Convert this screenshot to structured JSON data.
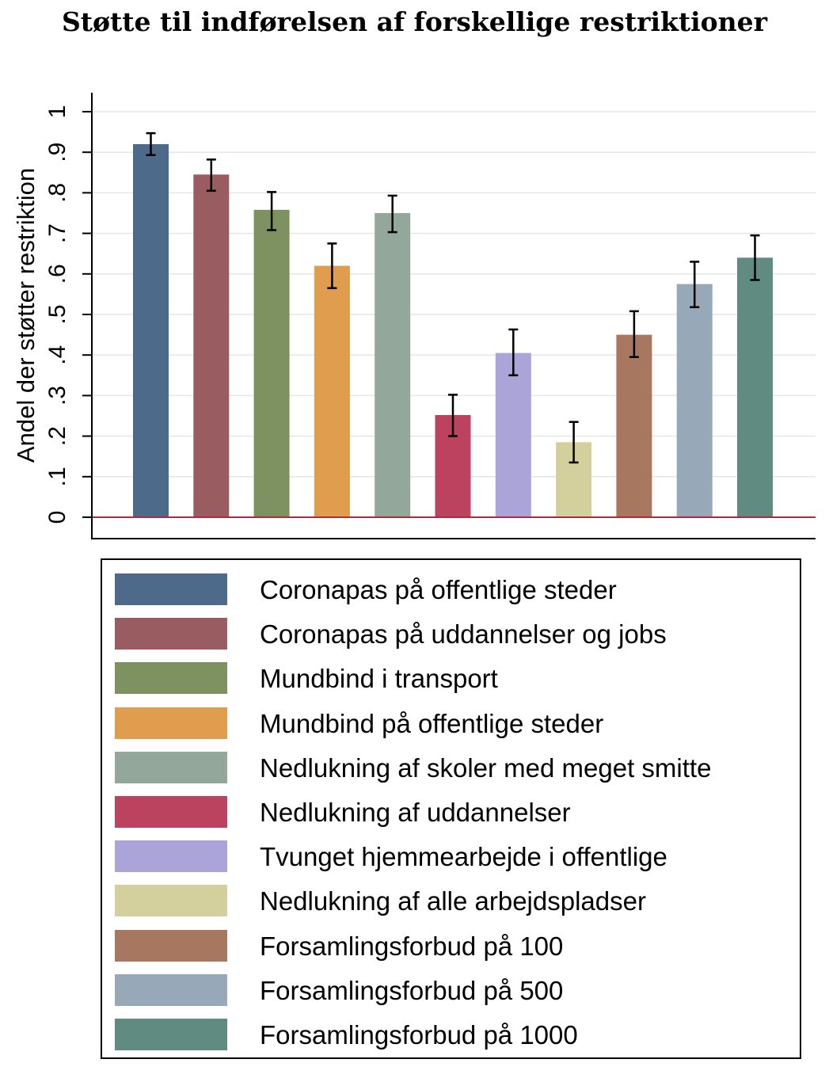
{
  "chart_data": {
    "type": "bar",
    "title": "Støtte til indførelsen af forskellige restriktioner",
    "xlabel": "",
    "ylabel": "Andel der støtter restriktion",
    "ylim": [
      0,
      1
    ],
    "yticks": [
      0,
      0.1,
      0.2,
      0.3,
      0.4,
      0.5,
      0.6,
      0.7,
      0.8,
      0.9,
      1
    ],
    "ytick_labels": [
      "0",
      ".1",
      ".2",
      ".3",
      ".4",
      ".5",
      ".6",
      ".7",
      ".8",
      ".9",
      "1"
    ],
    "grid": true,
    "reference_line": {
      "y": 0,
      "color": "#b5293e"
    },
    "legend_position": "bottom",
    "categories": [
      "Coronapas på offentlige steder",
      "Coronapas på uddannelser og jobs",
      "Mundbind i transport",
      "Mundbind på offentlige steder",
      "Nedlukning af skoler med meget smitte",
      "Nedlukning af uddannelser",
      "Tvunget hjemmearbejde i offentlige",
      "Nedlukning af alle arbejdspladser",
      "Forsamlingsforbud på 100",
      "Forsamlingsforbud på 500",
      "Forsamlingsforbud på 1000"
    ],
    "values": [
      0.92,
      0.845,
      0.758,
      0.62,
      0.75,
      0.252,
      0.405,
      0.185,
      0.45,
      0.575,
      0.64
    ],
    "ci_low": [
      0.893,
      0.805,
      0.708,
      0.565,
      0.703,
      0.2,
      0.35,
      0.135,
      0.395,
      0.518,
      0.585
    ],
    "ci_high": [
      0.947,
      0.882,
      0.802,
      0.675,
      0.793,
      0.302,
      0.463,
      0.235,
      0.508,
      0.63,
      0.695
    ],
    "colors": [
      "#4e6a8b",
      "#995c61",
      "#7e9160",
      "#e09d4d",
      "#93a79b",
      "#bc4360",
      "#aaa4d9",
      "#d4d09e",
      "#a8775f",
      "#97a8b8",
      "#5f8b81"
    ]
  }
}
